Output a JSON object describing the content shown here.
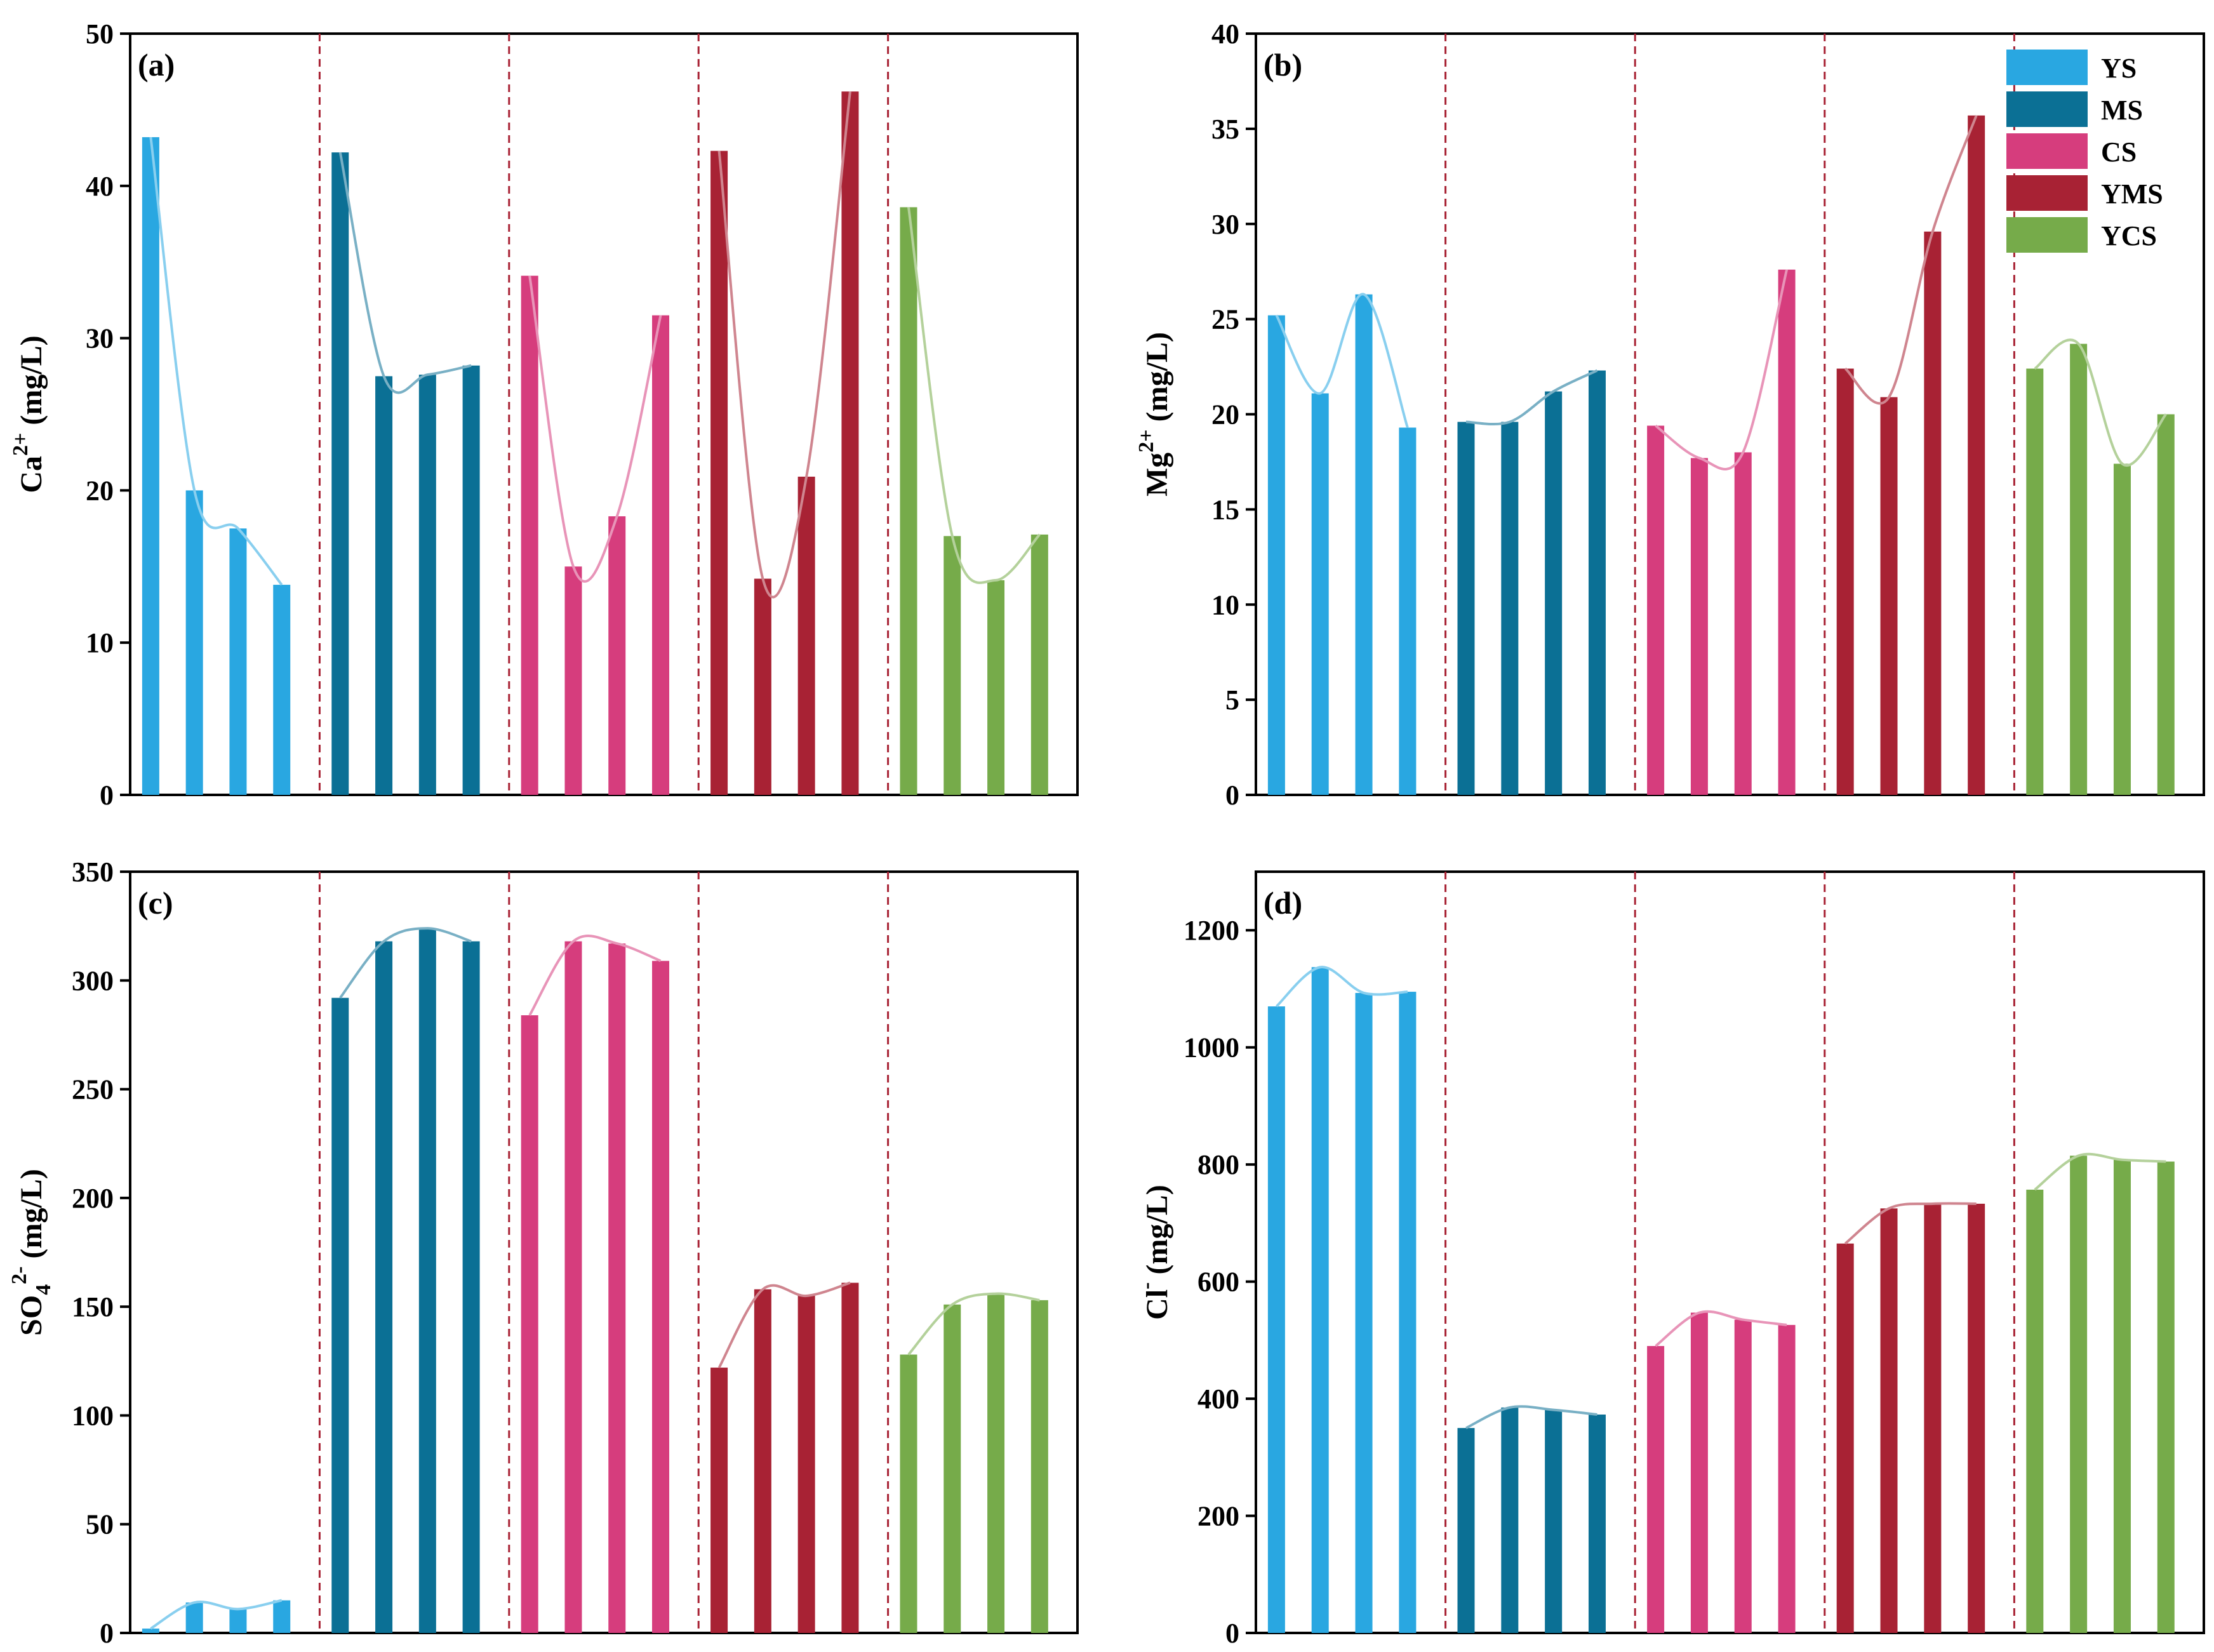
{
  "groups": [
    "YS",
    "MS",
    "CS",
    "YMS",
    "YCS"
  ],
  "colors": {
    "YS": "#29a7e1",
    "MS": "#0b7095",
    "CS": "#d63d7d",
    "YMS": "#a82234",
    "YCS": "#76ab4a",
    "separator": "#a82234"
  },
  "chart_data": [
    {
      "type": "bar",
      "panel": "(a)",
      "ylabel_base": "Ca",
      "ylabel_sup": "2+",
      "ylabel_sub": "",
      "ylabel_unit": " (mg/L)",
      "ylim": [
        0,
        50
      ],
      "yticks": [
        "0",
        "10",
        "20",
        "30",
        "40",
        "50"
      ],
      "tick_values": [
        0,
        10,
        20,
        30,
        40,
        50
      ],
      "legend": false,
      "series": [
        {
          "name": "YS",
          "values": [
            43.2,
            20.0,
            17.5,
            13.8
          ]
        },
        {
          "name": "MS",
          "values": [
            42.2,
            27.5,
            27.6,
            28.2
          ]
        },
        {
          "name": "CS",
          "values": [
            34.1,
            15.0,
            18.3,
            31.5
          ]
        },
        {
          "name": "YMS",
          "values": [
            42.3,
            14.2,
            20.9,
            46.2
          ]
        },
        {
          "name": "YCS",
          "values": [
            38.6,
            17.0,
            14.1,
            17.1
          ]
        }
      ]
    },
    {
      "type": "bar",
      "panel": "(b)",
      "ylabel_base": "Mg",
      "ylabel_sup": "2+",
      "ylabel_sub": "",
      "ylabel_unit": " (mg/L)",
      "ylim": [
        0,
        40
      ],
      "yticks": [
        "0",
        "5",
        "10",
        "15",
        "20",
        "25",
        "30",
        "35",
        "40"
      ],
      "tick_values": [
        0,
        5,
        10,
        15,
        20,
        25,
        30,
        35,
        40
      ],
      "legend": true,
      "series": [
        {
          "name": "YS",
          "values": [
            25.2,
            21.1,
            26.3,
            19.3
          ]
        },
        {
          "name": "MS",
          "values": [
            19.6,
            19.6,
            21.2,
            22.3
          ]
        },
        {
          "name": "CS",
          "values": [
            19.4,
            17.7,
            18.0,
            27.6
          ]
        },
        {
          "name": "YMS",
          "values": [
            22.4,
            20.9,
            29.6,
            35.7
          ]
        },
        {
          "name": "YCS",
          "values": [
            22.4,
            23.7,
            17.4,
            20.0
          ]
        }
      ]
    },
    {
      "type": "bar",
      "panel": "(c)",
      "ylabel_base": "SO",
      "ylabel_sup": "2-",
      "ylabel_sub": "4",
      "ylabel_unit": " (mg/L)",
      "ylim": [
        0,
        350
      ],
      "yticks": [
        "0",
        "50",
        "100",
        "150",
        "200",
        "250",
        "300",
        "350"
      ],
      "tick_values": [
        0,
        50,
        100,
        150,
        200,
        250,
        300,
        350
      ],
      "legend": false,
      "series": [
        {
          "name": "YS",
          "values": [
            2,
            14,
            11,
            15
          ]
        },
        {
          "name": "MS",
          "values": [
            292,
            318,
            324,
            318
          ]
        },
        {
          "name": "CS",
          "values": [
            284,
            318,
            317,
            309
          ]
        },
        {
          "name": "YMS",
          "values": [
            122,
            158,
            155,
            161
          ]
        },
        {
          "name": "YCS",
          "values": [
            128,
            151,
            156,
            153
          ]
        }
      ]
    },
    {
      "type": "bar",
      "panel": "(d)",
      "ylabel_base": "Cl",
      "ylabel_sup": "-",
      "ylabel_sub": "",
      "ylabel_unit": " (mg/L)",
      "ylim": [
        0,
        1300
      ],
      "yticks": [
        "0",
        "200",
        "400",
        "600",
        "800",
        "1000",
        "1200"
      ],
      "tick_values": [
        0,
        200,
        400,
        600,
        800,
        1000,
        1200
      ],
      "legend": false,
      "series": [
        {
          "name": "YS",
          "values": [
            1070,
            1137,
            1093,
            1095
          ]
        },
        {
          "name": "MS",
          "values": [
            350,
            385,
            381,
            373
          ]
        },
        {
          "name": "CS",
          "values": [
            490,
            547,
            535,
            526
          ]
        },
        {
          "name": "YMS",
          "values": [
            665,
            725,
            733,
            733
          ]
        },
        {
          "name": "YCS",
          "values": [
            757,
            815,
            808,
            805
          ]
        }
      ]
    }
  ]
}
